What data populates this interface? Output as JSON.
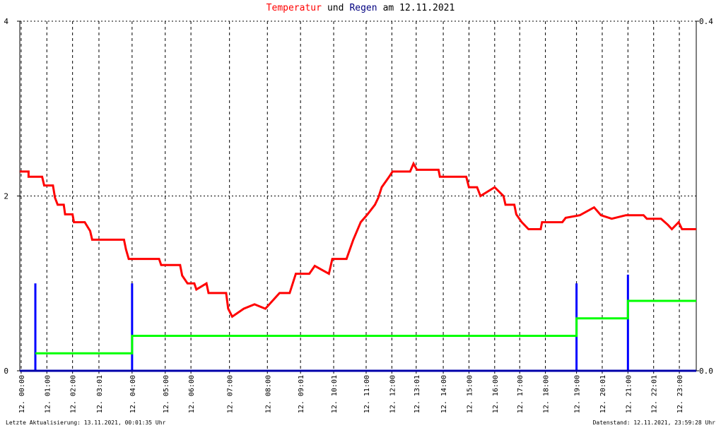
{
  "chart_data": {
    "type": "line",
    "title": [
      "Temperatur",
      "und",
      "Regen",
      "am 12.11.2021"
    ],
    "title_colors": [
      "#ff0000",
      "#000000",
      "#000080",
      "#000000"
    ],
    "xlim": [
      0,
      1000
    ],
    "xticks": [
      {
        "value": 2,
        "label": "12. 00:00"
      },
      {
        "value": 40,
        "label": "12. 01:00"
      },
      {
        "value": 78,
        "label": "12. 02:00"
      },
      {
        "value": 117,
        "label": "12. 03:01"
      },
      {
        "value": 166,
        "label": "12. 04:00"
      },
      {
        "value": 215,
        "label": "12. 05:00"
      },
      {
        "value": 253,
        "label": "12. 06:00"
      },
      {
        "value": 310,
        "label": "12. 07:00"
      },
      {
        "value": 366,
        "label": "12. 08:00"
      },
      {
        "value": 415,
        "label": "12. 09:01"
      },
      {
        "value": 464,
        "label": "12. 10:01"
      },
      {
        "value": 512,
        "label": "12. 11:00"
      },
      {
        "value": 550,
        "label": "12. 12:00"
      },
      {
        "value": 586,
        "label": "12. 13:01"
      },
      {
        "value": 626,
        "label": "12. 14:00"
      },
      {
        "value": 664,
        "label": "12. 15:00"
      },
      {
        "value": 702,
        "label": "12. 16:00"
      },
      {
        "value": 739,
        "label": "12. 17:00"
      },
      {
        "value": 777,
        "label": "12. 18:00"
      },
      {
        "value": 823,
        "label": "12. 19:00"
      },
      {
        "value": 861,
        "label": "12. 20:01"
      },
      {
        "value": 899,
        "label": "12. 21:00"
      },
      {
        "value": 937,
        "label": "12. 22:01"
      },
      {
        "value": 975,
        "label": "12. 23:00"
      }
    ],
    "ylim": [
      0,
      4
    ],
    "yticks": [
      0,
      2,
      4
    ],
    "y2lim": [
      0,
      0.4
    ],
    "y2ticks": [
      {
        "value": 0,
        "label": "0.0"
      },
      {
        "value": 0.4,
        "label": "0.4"
      }
    ],
    "grid": true,
    "series": [
      {
        "type": "line",
        "color": "#ff0000",
        "x": [
          0,
          13,
          13,
          33,
          36,
          49,
          52,
          56,
          65,
          67,
          78,
          80,
          96,
          104,
          107,
          154,
          157,
          161,
          206,
          209,
          237,
          240,
          248,
          258,
          261,
          276,
          279,
          305,
          308,
          314,
          331,
          347,
          363,
          384,
          399,
          408,
          428,
          436,
          457,
          462,
          483,
          488,
          493,
          504,
          514,
          525,
          530,
          535,
          546,
          551,
          577,
          582,
          587,
          619,
          621,
          660,
          664,
          676,
          681,
          702,
          715,
          718,
          731,
          734,
          742,
          752,
          770,
          772,
          802,
          807,
          828,
          849,
          859,
          875,
          896,
          922,
          927,
          948,
          958,
          964,
          974,
          979,
          1000
        ],
        "values": [
          2.28,
          2.28,
          2.22,
          2.22,
          2.12,
          2.12,
          1.98,
          1.9,
          1.9,
          1.79,
          1.79,
          1.7,
          1.7,
          1.6,
          1.5,
          1.5,
          1.39,
          1.28,
          1.28,
          1.21,
          1.21,
          1.09,
          1.0,
          1.0,
          0.93,
          1.0,
          0.89,
          0.89,
          0.71,
          0.62,
          0.71,
          0.76,
          0.71,
          0.89,
          0.89,
          1.11,
          1.11,
          1.2,
          1.11,
          1.28,
          1.28,
          1.39,
          1.5,
          1.7,
          1.79,
          1.9,
          1.98,
          2.1,
          2.22,
          2.28,
          2.28,
          2.37,
          2.3,
          2.3,
          2.22,
          2.22,
          2.1,
          2.1,
          2.0,
          2.1,
          2.0,
          1.9,
          1.9,
          1.79,
          1.7,
          1.62,
          1.62,
          1.7,
          1.7,
          1.75,
          1.78,
          1.87,
          1.78,
          1.74,
          1.78,
          1.78,
          1.74,
          1.74,
          1.67,
          1.62,
          1.7,
          1.62,
          1.62
        ]
      },
      {
        "type": "bar",
        "axis": "y2",
        "color": "#0000ff",
        "x": [
          23,
          166,
          823,
          899
        ],
        "values": [
          0.1,
          0.1,
          0.1,
          0.11
        ]
      },
      {
        "type": "line",
        "axis": "y2",
        "color": "#00ff00",
        "x": [
          23,
          166,
          166,
          823,
          823,
          899,
          899,
          1000
        ],
        "values": [
          0.02,
          0.02,
          0.04,
          0.04,
          0.06,
          0.06,
          0.08,
          0.08
        ]
      }
    ],
    "footer_left": "Letzte Aktualisierung: 13.11.2021, 00:01:35 Uhr",
    "footer_right": "Datenstand: 12.11.2021, 23:59:28 Uhr"
  }
}
